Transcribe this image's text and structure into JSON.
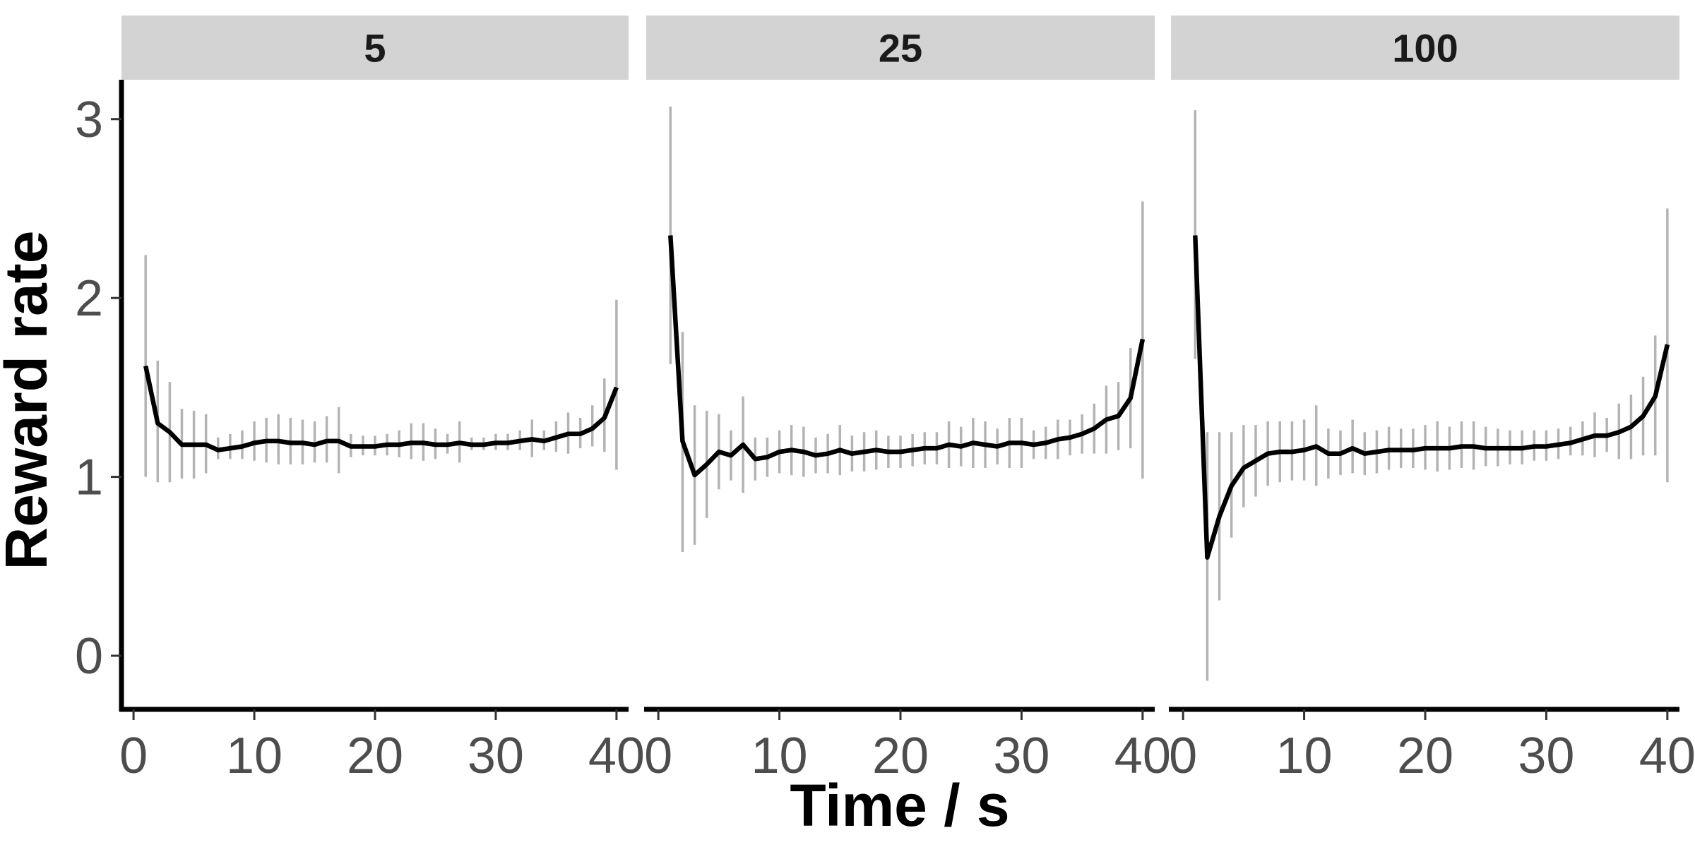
{
  "chart_data": {
    "type": "line",
    "xlabel": "Time / s",
    "ylabel": "Reward rate",
    "xlim": [
      -1,
      41
    ],
    "ylim": [
      -0.28,
      3.22
    ],
    "x_ticks": [
      0,
      10,
      20,
      30,
      40
    ],
    "y_ticks": [
      0,
      1,
      2,
      3
    ],
    "grid": false,
    "legend": "none",
    "colors": {
      "line": "#000000",
      "error_bar": "#b3b3b3",
      "strip": "#d3d3d3"
    },
    "panels": [
      {
        "label": "5",
        "x": [
          1,
          2,
          3,
          4,
          5,
          6,
          7,
          8,
          9,
          10,
          11,
          12,
          13,
          14,
          15,
          16,
          17,
          18,
          19,
          20,
          21,
          22,
          23,
          24,
          25,
          26,
          27,
          28,
          29,
          30,
          31,
          32,
          33,
          34,
          35,
          36,
          37,
          38,
          39,
          40
        ],
        "y": [
          1.62,
          1.3,
          1.25,
          1.18,
          1.18,
          1.18,
          1.15,
          1.16,
          1.17,
          1.19,
          1.2,
          1.2,
          1.19,
          1.19,
          1.18,
          1.2,
          1.2,
          1.17,
          1.17,
          1.17,
          1.18,
          1.18,
          1.19,
          1.19,
          1.18,
          1.18,
          1.19,
          1.18,
          1.18,
          1.19,
          1.19,
          1.2,
          1.21,
          1.2,
          1.22,
          1.24,
          1.24,
          1.27,
          1.33,
          1.5
        ],
        "ymin": [
          1.0,
          0.97,
          0.97,
          0.99,
          0.99,
          1.02,
          1.1,
          1.1,
          1.1,
          1.09,
          1.08,
          1.07,
          1.07,
          1.07,
          1.08,
          1.08,
          1.02,
          1.11,
          1.12,
          1.12,
          1.12,
          1.11,
          1.1,
          1.09,
          1.1,
          1.13,
          1.08,
          1.15,
          1.15,
          1.15,
          1.15,
          1.15,
          1.11,
          1.15,
          1.14,
          1.13,
          1.16,
          1.17,
          1.14,
          1.04
        ],
        "ymax": [
          2.24,
          1.65,
          1.53,
          1.38,
          1.37,
          1.35,
          1.22,
          1.24,
          1.26,
          1.31,
          1.33,
          1.35,
          1.33,
          1.32,
          1.31,
          1.34,
          1.39,
          1.24,
          1.23,
          1.23,
          1.24,
          1.26,
          1.3,
          1.3,
          1.27,
          1.24,
          1.31,
          1.22,
          1.22,
          1.24,
          1.24,
          1.26,
          1.32,
          1.26,
          1.31,
          1.36,
          1.33,
          1.4,
          1.55,
          1.99
        ]
      },
      {
        "label": "25",
        "x": [
          1,
          2,
          3,
          4,
          5,
          6,
          7,
          8,
          9,
          10,
          11,
          12,
          13,
          14,
          15,
          16,
          17,
          18,
          19,
          20,
          21,
          22,
          23,
          24,
          25,
          26,
          27,
          28,
          29,
          30,
          31,
          32,
          33,
          34,
          35,
          36,
          37,
          38,
          39,
          40
        ],
        "y": [
          2.35,
          1.2,
          1.01,
          1.07,
          1.14,
          1.12,
          1.18,
          1.1,
          1.11,
          1.14,
          1.15,
          1.14,
          1.12,
          1.13,
          1.15,
          1.13,
          1.14,
          1.15,
          1.14,
          1.14,
          1.15,
          1.16,
          1.16,
          1.18,
          1.17,
          1.19,
          1.18,
          1.17,
          1.19,
          1.19,
          1.18,
          1.19,
          1.21,
          1.22,
          1.24,
          1.27,
          1.32,
          1.34,
          1.44,
          1.77
        ],
        "ymin": [
          1.63,
          0.58,
          0.62,
          0.77,
          0.93,
          0.98,
          0.91,
          0.98,
          1.0,
          1.02,
          1.01,
          1.0,
          1.02,
          1.02,
          1.01,
          1.03,
          1.03,
          1.04,
          1.05,
          1.05,
          1.06,
          1.07,
          1.07,
          1.05,
          1.06,
          1.05,
          1.05,
          1.07,
          1.05,
          1.05,
          1.1,
          1.1,
          1.1,
          1.12,
          1.13,
          1.13,
          1.13,
          1.15,
          1.16,
          0.99
        ],
        "ymax": [
          3.07,
          1.81,
          1.4,
          1.37,
          1.35,
          1.26,
          1.45,
          1.22,
          1.22,
          1.26,
          1.29,
          1.28,
          1.22,
          1.24,
          1.29,
          1.23,
          1.25,
          1.26,
          1.23,
          1.23,
          1.24,
          1.25,
          1.25,
          1.31,
          1.28,
          1.33,
          1.31,
          1.27,
          1.33,
          1.33,
          1.26,
          1.28,
          1.32,
          1.32,
          1.35,
          1.41,
          1.51,
          1.53,
          1.72,
          2.54
        ]
      },
      {
        "label": "100",
        "x": [
          1,
          2,
          3,
          4,
          5,
          6,
          7,
          8,
          9,
          10,
          11,
          12,
          13,
          14,
          15,
          16,
          17,
          18,
          19,
          20,
          21,
          22,
          23,
          24,
          25,
          26,
          27,
          28,
          29,
          30,
          31,
          32,
          33,
          34,
          35,
          36,
          37,
          38,
          39,
          40
        ],
        "y": [
          2.35,
          0.55,
          0.78,
          0.95,
          1.05,
          1.09,
          1.13,
          1.14,
          1.14,
          1.15,
          1.17,
          1.13,
          1.13,
          1.16,
          1.13,
          1.14,
          1.15,
          1.15,
          1.15,
          1.16,
          1.16,
          1.16,
          1.17,
          1.17,
          1.16,
          1.16,
          1.16,
          1.16,
          1.17,
          1.17,
          1.18,
          1.19,
          1.21,
          1.23,
          1.23,
          1.25,
          1.28,
          1.34,
          1.45,
          1.74
        ],
        "ymin": [
          1.66,
          -0.14,
          0.31,
          0.66,
          0.83,
          0.89,
          0.95,
          0.97,
          0.98,
          0.98,
          0.95,
          0.99,
          1.01,
          1.02,
          1.01,
          1.02,
          1.04,
          1.05,
          1.05,
          1.04,
          1.03,
          1.04,
          1.05,
          1.04,
          1.06,
          1.06,
          1.07,
          1.07,
          1.09,
          1.09,
          1.1,
          1.12,
          1.12,
          1.11,
          1.14,
          1.1,
          1.1,
          1.12,
          1.12,
          0.97
        ],
        "ymax": [
          3.05,
          1.25,
          1.25,
          1.25,
          1.29,
          1.29,
          1.31,
          1.31,
          1.31,
          1.32,
          1.4,
          1.27,
          1.26,
          1.32,
          1.25,
          1.26,
          1.28,
          1.27,
          1.27,
          1.29,
          1.31,
          1.28,
          1.31,
          1.31,
          1.28,
          1.27,
          1.26,
          1.26,
          1.26,
          1.26,
          1.27,
          1.28,
          1.31,
          1.36,
          1.33,
          1.41,
          1.46,
          1.56,
          1.79,
          2.5
        ]
      }
    ]
  }
}
